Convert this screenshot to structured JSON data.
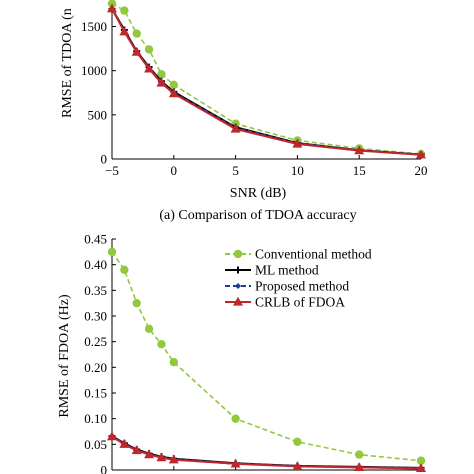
{
  "colors": {
    "conventional": "#92c83e",
    "ml": "#000000",
    "proposed": "#1f3c96",
    "crlb": "#c0272d",
    "axis": "#000000"
  },
  "chart_data": [
    {
      "type": "line",
      "caption": "(a) Comparison of TDOA accuracy",
      "xlabel": "SNR (dB)",
      "ylabel": "RMSE of TDOA (n",
      "xlim": [
        -5,
        20
      ],
      "ylim": [
        0,
        1800
      ],
      "xticks": [
        -5,
        0,
        5,
        10,
        15,
        20
      ],
      "yticks": [
        0,
        500,
        1000,
        1500
      ],
      "x": [
        -5,
        -4,
        -3,
        -2,
        -1,
        0,
        5,
        10,
        15,
        20
      ],
      "series": [
        {
          "key": "conventional",
          "marker": "circle",
          "dash": true,
          "values": [
            1760,
            1680,
            1420,
            1240,
            960,
            840,
            400,
            210,
            120,
            55
          ]
        },
        {
          "key": "ml",
          "marker": "plus",
          "dash": false,
          "values": [
            1700,
            1460,
            1220,
            1040,
            880,
            760,
            360,
            180,
            100,
            50
          ]
        },
        {
          "key": "proposed",
          "marker": "diamond",
          "dash": true,
          "values": [
            1700,
            1450,
            1215,
            1030,
            870,
            750,
            355,
            178,
            98,
            50
          ]
        },
        {
          "key": "crlb",
          "marker": "triangle",
          "dash": false,
          "values": [
            1700,
            1440,
            1210,
            1020,
            860,
            740,
            340,
            170,
            95,
            48
          ]
        }
      ]
    },
    {
      "type": "line",
      "ylabel": "RMSE of FDOA (Hz)",
      "xlim": [
        -5,
        20
      ],
      "ylim": [
        0,
        0.45
      ],
      "yticks": [
        "0",
        "0.05",
        "0.10",
        "0.15",
        "0.20",
        "0.25",
        "0.30",
        "0.35",
        "0.40",
        "0.45"
      ],
      "x": [
        -5,
        -4,
        -3,
        -2,
        -1,
        0,
        5,
        10,
        15,
        20
      ],
      "legend": {
        "position": "top-right",
        "entries": [
          {
            "key": "conventional",
            "label": "Conventional method"
          },
          {
            "key": "ml",
            "label": "ML method"
          },
          {
            "key": "proposed",
            "label": "Proposed method"
          },
          {
            "key": "crlb",
            "label": "CRLB of FDOA"
          }
        ]
      },
      "series": [
        {
          "key": "conventional",
          "marker": "circle",
          "dash": true,
          "values": [
            0.425,
            0.39,
            0.325,
            0.275,
            0.245,
            0.21,
            0.1,
            0.055,
            0.03,
            0.018
          ]
        },
        {
          "key": "ml",
          "marker": "plus",
          "dash": false,
          "values": [
            0.066,
            0.052,
            0.04,
            0.032,
            0.026,
            0.022,
            0.013,
            0.008,
            0.006,
            0.004
          ]
        },
        {
          "key": "proposed",
          "marker": "diamond",
          "dash": true,
          "values": [
            0.066,
            0.051,
            0.039,
            0.031,
            0.025,
            0.021,
            0.012,
            0.008,
            0.005,
            0.004
          ]
        },
        {
          "key": "crlb",
          "marker": "triangle",
          "dash": false,
          "values": [
            0.065,
            0.05,
            0.038,
            0.03,
            0.024,
            0.02,
            0.012,
            0.007,
            0.005,
            0.003
          ]
        }
      ]
    }
  ]
}
